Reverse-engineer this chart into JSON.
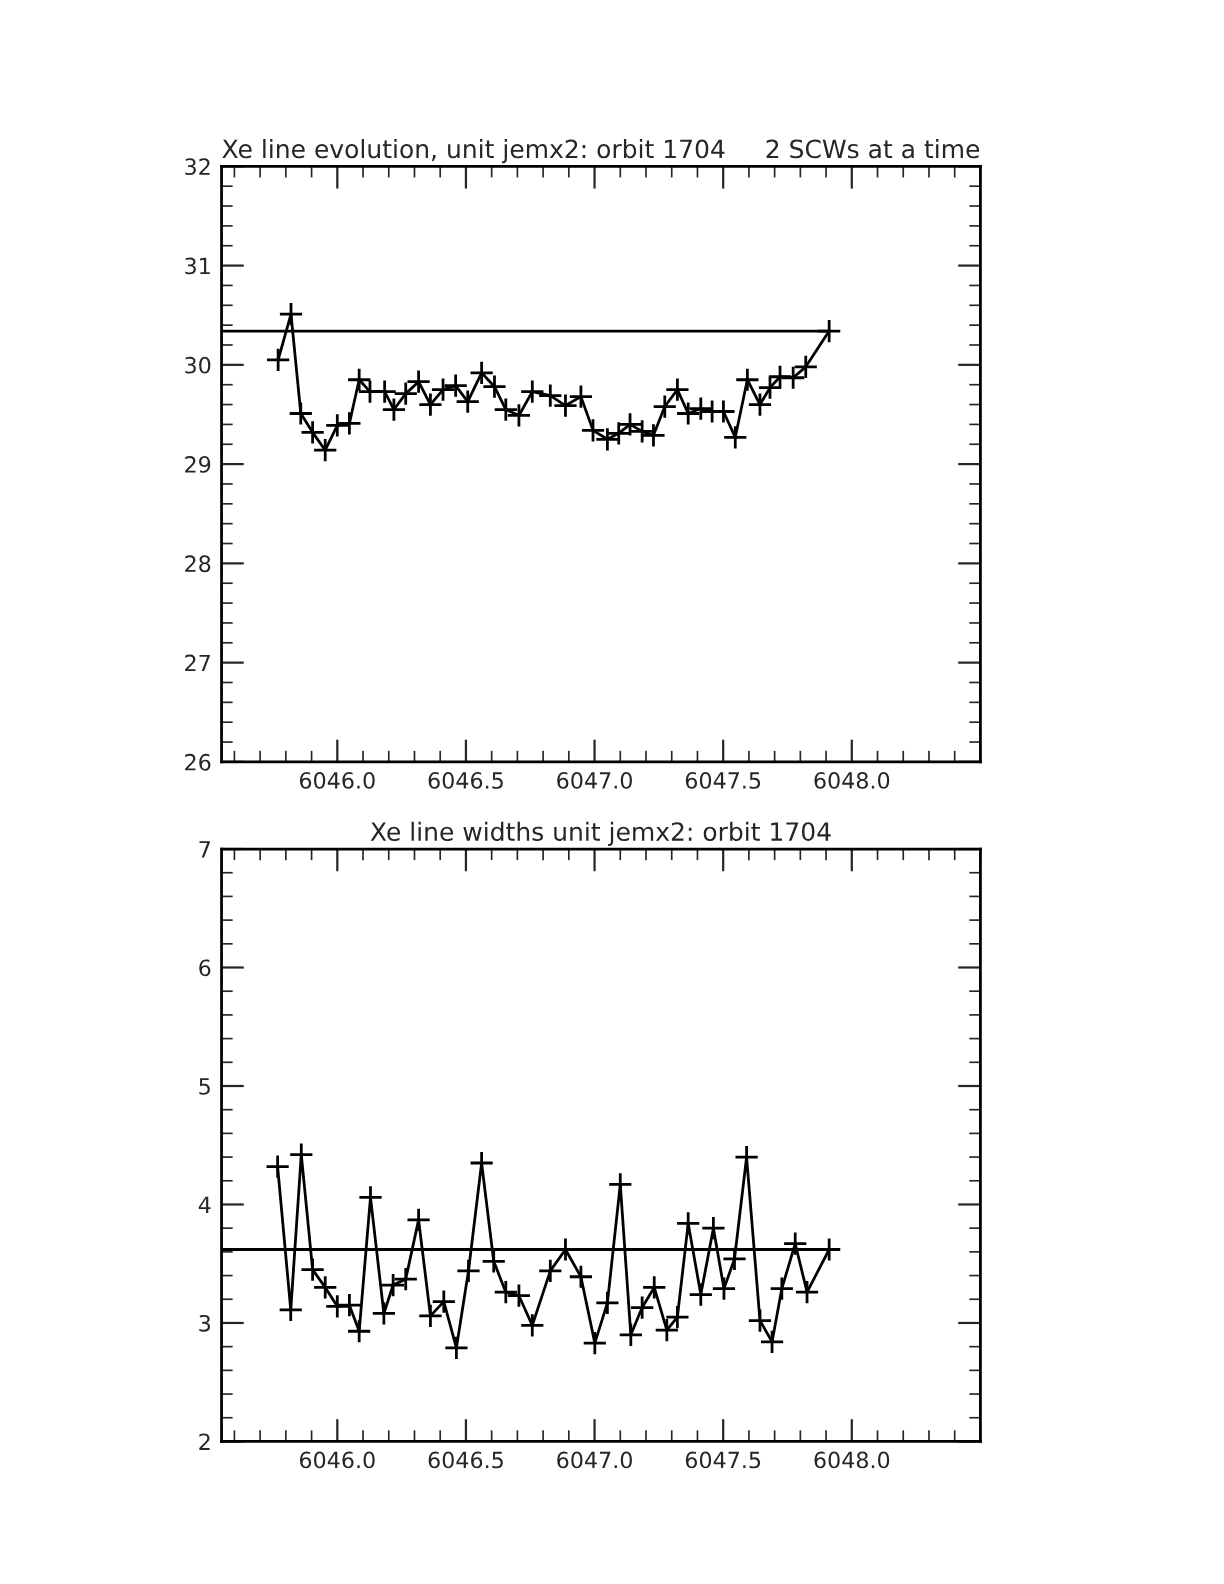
{
  "chart_data": [
    {
      "type": "line",
      "title": "Xe line evolution, unit jemx2: orbit 1704",
      "subtitle": "2 SCWs at a time",
      "xlim": [
        6045.55,
        6048.5
      ],
      "xticks": [
        {
          "value": 6046,
          "label": "6046.0"
        },
        {
          "value": 6046.5,
          "label": "6046.5"
        },
        {
          "value": 6047,
          "label": "6047.0"
        },
        {
          "value": 6047.5,
          "label": "6047.5"
        },
        {
          "value": 6048,
          "label": "6048.0"
        }
      ],
      "ylim": [
        26,
        32
      ],
      "yticks": [
        26,
        27,
        28,
        29,
        30,
        31,
        32
      ],
      "grid": false,
      "series": [
        {
          "color": "#000000",
          "marker": "cross",
          "x": [
            6045.77,
            6045.82,
            6045.858,
            6045.904,
            6045.953,
            6046.0,
            6046.047,
            6046.085,
            6046.127,
            6046.184,
            6046.22,
            6046.266,
            6046.316,
            6046.362,
            6046.411,
            6046.46,
            6046.507,
            6046.561,
            6046.611,
            6046.655,
            6046.706,
            6046.758,
            6046.828,
            6046.887,
            6046.947,
            6046.994,
            6047.05,
            6047.094,
            6047.138,
            6047.185,
            6047.229,
            6047.273,
            6047.322,
            6047.364,
            6047.413,
            6047.457,
            6047.501,
            6047.547,
            6047.594,
            6047.643,
            6047.682,
            6047.721,
            6047.772,
            6047.821,
            6047.912
          ],
          "values": [
            30.05,
            30.51,
            29.51,
            29.32,
            29.14,
            29.39,
            29.41,
            29.85,
            29.73,
            29.73,
            29.55,
            29.71,
            29.83,
            29.6,
            29.75,
            29.79,
            29.63,
            29.92,
            29.78,
            29.55,
            29.49,
            29.73,
            29.69,
            29.59,
            29.68,
            29.34,
            29.25,
            29.31,
            29.4,
            29.33,
            29.29,
            29.58,
            29.75,
            29.51,
            29.56,
            29.53,
            29.53,
            29.27,
            29.85,
            29.6,
            29.77,
            29.88,
            29.87,
            29.98,
            30.34
          ]
        },
        {
          "color": "#000000",
          "marker": "none",
          "x": [
            6045.55,
            6047.912
          ],
          "values": [
            30.34,
            30.34
          ]
        }
      ]
    },
    {
      "type": "line",
      "title": "Xe line widths unit jemx2: orbit 1704",
      "xlim": [
        6045.55,
        6048.5
      ],
      "xticks": [
        {
          "value": 6046,
          "label": "6046.0"
        },
        {
          "value": 6046.5,
          "label": "6046.5"
        },
        {
          "value": 6047,
          "label": "6047.0"
        },
        {
          "value": 6047.5,
          "label": "6047.5"
        },
        {
          "value": 6048,
          "label": "6048.0"
        }
      ],
      "ylim": [
        2,
        7
      ],
      "yticks": [
        2,
        3,
        4,
        5,
        6,
        7
      ],
      "grid": false,
      "series": [
        {
          "color": "#000000",
          "marker": "cross",
          "x": [
            6045.768,
            6045.819,
            6045.86,
            6045.904,
            6045.953,
            6046.0,
            6046.047,
            6046.085,
            6046.129,
            6046.181,
            6046.217,
            6046.266,
            6046.316,
            6046.362,
            6046.414,
            6046.463,
            6046.51,
            6046.561,
            6046.608,
            6046.655,
            6046.706,
            6046.758,
            6046.828,
            6046.887,
            6046.947,
            6047.001,
            6047.05,
            6047.1,
            6047.141,
            6047.185,
            6047.232,
            6047.281,
            6047.322,
            6047.364,
            6047.413,
            6047.462,
            6047.503,
            6047.544,
            6047.591,
            6047.643,
            6047.69,
            6047.728,
            6047.78,
            6047.826,
            6047.912
          ],
          "values": [
            4.32,
            3.11,
            4.42,
            3.45,
            3.3,
            3.14,
            3.15,
            2.93,
            4.06,
            3.08,
            3.32,
            3.37,
            3.87,
            3.06,
            3.18,
            2.79,
            3.44,
            4.35,
            3.52,
            3.26,
            3.23,
            2.98,
            3.44,
            3.62,
            3.39,
            2.83,
            3.17,
            4.17,
            2.9,
            3.13,
            3.3,
            2.94,
            3.05,
            3.84,
            3.24,
            3.8,
            3.29,
            3.54,
            4.4,
            3.02,
            2.84,
            3.29,
            3.67,
            3.26,
            3.62
          ]
        },
        {
          "color": "#000000",
          "marker": "none",
          "x": [
            6045.55,
            6047.912
          ],
          "values": [
            3.62,
            3.62
          ]
        }
      ]
    }
  ]
}
